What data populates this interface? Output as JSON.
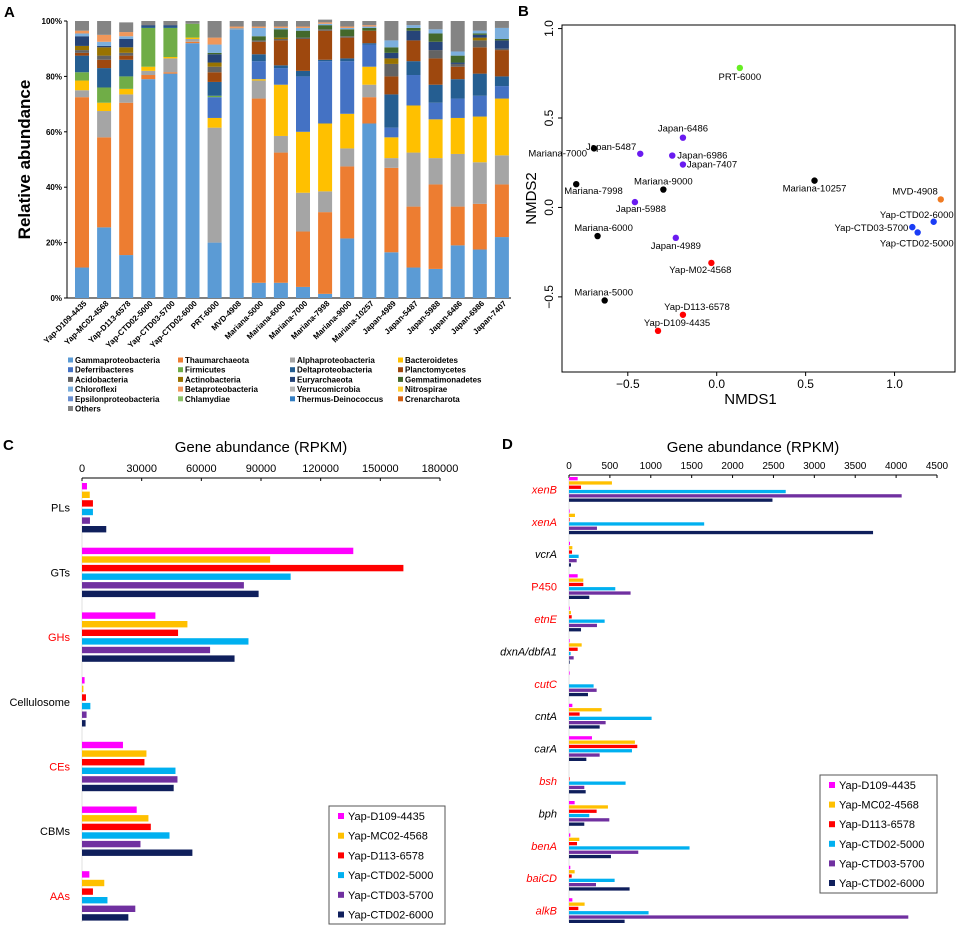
{
  "panel_labels": [
    "A",
    "B",
    "C",
    "D"
  ],
  "chart_data": [
    {
      "panel": "A",
      "type": "bar",
      "stacked": true,
      "ylabel": "Relative abundance",
      "ylim": [
        0,
        100
      ],
      "yticks": [
        "0%",
        "20%",
        "40%",
        "60%",
        "80%",
        "100%"
      ],
      "categories": [
        "Yap-D109-4435",
        "Yap-MC02-4568",
        "Yap-D113-6578",
        "Yap-CTD02-5000",
        "Yap-CTD03-5700",
        "Yap-CTD02-6000",
        "PRT-6000",
        "MVD-4908",
        "Mariana-5000",
        "Mariana-6000",
        "Mariana-7000",
        "Mariana-7998",
        "Mariana-9000",
        "Mariana-10257",
        "Japan-4989",
        "Japan-5487",
        "Japan-5988",
        "Japan-6486",
        "Japan-6986",
        "Japan-7407"
      ],
      "legend": [
        {
          "name": "Gammaproteobacteria",
          "color": "#5b9bd5"
        },
        {
          "name": "Thaumarchaeota",
          "color": "#ed7d31"
        },
        {
          "name": "Alphaproteobacteria",
          "color": "#a5a5a5"
        },
        {
          "name": "Bacteroidetes",
          "color": "#ffc000"
        },
        {
          "name": "Deferribacteres",
          "color": "#4472c4"
        },
        {
          "name": "Firmicutes",
          "color": "#70ad47"
        },
        {
          "name": "Deltaproteobacteria",
          "color": "#255e91"
        },
        {
          "name": "Planctomycetes",
          "color": "#9e480e"
        },
        {
          "name": "Acidobacteria",
          "color": "#636363"
        },
        {
          "name": "Actinobacteria",
          "color": "#997300"
        },
        {
          "name": "Euryarchaeota",
          "color": "#264478"
        },
        {
          "name": "Gemmatimonadetes",
          "color": "#43682b"
        },
        {
          "name": "Chloroflexi",
          "color": "#7cafdd"
        },
        {
          "name": "Betaproteobacteria",
          "color": "#f1975a"
        },
        {
          "name": "Verrucomicrobia",
          "color": "#b7b7b7"
        },
        {
          "name": "Nitrospirae",
          "color": "#ffcd33"
        },
        {
          "name": "Epsilonproteobacteria",
          "color": "#698ed0"
        },
        {
          "name": "Chlamydiae",
          "color": "#8cc168"
        },
        {
          "name": "Thermus-Deinococcus",
          "color": "#327dc2"
        },
        {
          "name": "Crenarcharota",
          "color": "#d26012"
        },
        {
          "name": "Others",
          "color": "#848484"
        }
      ],
      "series": [
        {
          "name": "Gammaproteobacteria",
          "values": [
            11,
            25.5,
            15.5,
            79,
            81,
            92,
            20,
            97,
            5.5,
            5.5,
            4,
            1.5,
            21.5,
            63,
            16.5,
            11,
            10.5,
            19,
            17.5,
            22
          ]
        },
        {
          "name": "Thaumarchaeota",
          "values": [
            61.5,
            32.5,
            55,
            1.5,
            0.5,
            0.5,
            0,
            0,
            66.5,
            47,
            20,
            29.5,
            26,
            9.5,
            30.5,
            22,
            30.5,
            14,
            16.5,
            19
          ]
        },
        {
          "name": "Alphaproteobacteria",
          "values": [
            2.5,
            9.5,
            3,
            1.5,
            5,
            1,
            41.5,
            0.5,
            6.5,
            6,
            14,
            7.5,
            6.5,
            4.5,
            3.5,
            19.5,
            9.5,
            19,
            15,
            10.5
          ]
        },
        {
          "name": "Bacteroidetes",
          "values": [
            3.5,
            3,
            2,
            1.5,
            0.5,
            0.5,
            3.5,
            0,
            0.5,
            18.5,
            22,
            24.5,
            12.5,
            6.5,
            7.5,
            17,
            14,
            13,
            16.5,
            20.5
          ]
        },
        {
          "name": "Deferribacteres",
          "values": [
            0,
            0,
            0,
            0,
            0,
            0,
            7.5,
            0,
            6.5,
            6,
            20,
            22.5,
            19,
            8,
            3.5,
            11,
            6,
            7,
            7.5,
            4.5
          ]
        },
        {
          "name": "Firmicutes",
          "values": [
            3,
            5.5,
            4.5,
            14,
            10.5,
            5,
            0.5,
            0,
            0,
            0,
            0,
            0,
            0,
            0,
            0,
            0,
            0,
            0,
            0,
            0
          ]
        },
        {
          "name": "Deltaproteobacteria",
          "values": [
            6,
            7,
            6,
            0.5,
            0.5,
            0,
            5,
            0,
            2.5,
            1,
            2,
            0.5,
            1,
            0.5,
            12,
            5,
            6.5,
            7,
            8,
            3.5
          ]
        },
        {
          "name": "Planctomycetes",
          "values": [
            1,
            3,
            1.5,
            0,
            0,
            0,
            3.5,
            0,
            4.5,
            9,
            11.5,
            10.5,
            7.5,
            4.5,
            6.5,
            7.5,
            9.5,
            4.5,
            9.5,
            9.5
          ]
        },
        {
          "name": "Acidobacteria",
          "values": [
            1,
            1.5,
            1,
            0,
            0,
            0,
            2,
            0,
            0.5,
            0.5,
            0.5,
            0.5,
            0.5,
            0,
            4.5,
            0,
            3,
            1,
            2.5,
            0.5
          ]
        },
        {
          "name": "Actinobacteria",
          "values": [
            1.5,
            3,
            2,
            0,
            0,
            0,
            1.5,
            0,
            0,
            0.5,
            0,
            0,
            0,
            0,
            2,
            0,
            0,
            0,
            1,
            0
          ]
        },
        {
          "name": "Euryarchaeota",
          "values": [
            3.5,
            0.5,
            3,
            0.5,
            0.5,
            0,
            3,
            0,
            0,
            0,
            0,
            0,
            0,
            0,
            2,
            3.5,
            3,
            0.5,
            1,
            3
          ]
        },
        {
          "name": "Gemmatimonadetes",
          "values": [
            0,
            0,
            0,
            0,
            0,
            0,
            0.5,
            0,
            1.5,
            3,
            2.5,
            1.5,
            2.5,
            1,
            2,
            1,
            3,
            2.5,
            0.5,
            0.5
          ]
        },
        {
          "name": "Chloroflexi",
          "values": [
            1,
            1.5,
            1,
            0,
            0,
            0,
            3,
            0,
            3,
            0.5,
            1,
            0.5,
            0.5,
            0.5,
            2.5,
            1,
            1.5,
            1.5,
            1,
            4
          ]
        },
        {
          "name": "Betaproteobacteria",
          "values": [
            1,
            2.5,
            1.5,
            0,
            0,
            0,
            2.5,
            0.5,
            0.5,
            0.5,
            0.5,
            0.5,
            0.5,
            0.5,
            0,
            0,
            0,
            0,
            0,
            0
          ]
        },
        {
          "name": "Others",
          "values": [
            3.5,
            5,
            3.5,
            1.5,
            1.5,
            1,
            6,
            2,
            2,
            2,
            2,
            1,
            2,
            1.5,
            7,
            1.5,
            3,
            11,
            3.5,
            2.5
          ]
        }
      ]
    },
    {
      "panel": "B",
      "type": "scatter",
      "xlabel": "NMDS1",
      "ylabel": "NMDS2",
      "xlim": [
        -0.87,
        1.34
      ],
      "ylim": [
        -0.92,
        1.02
      ],
      "xticks": [
        -0.5,
        0.0,
        0.5,
        1.0
      ],
      "yticks": [
        -0.5,
        0.0,
        0.5,
        1.0
      ],
      "points": [
        {
          "label": "PRT-6000",
          "x": 0.13,
          "y": 0.78,
          "color": "#66ee22"
        },
        {
          "label": "Japan-6486",
          "x": -0.19,
          "y": 0.39,
          "color": "#6a1bf0"
        },
        {
          "label": "Japan-5487",
          "x": -0.43,
          "y": 0.3,
          "color": "#6a1bf0"
        },
        {
          "label": "Mariana-7000",
          "x": -0.69,
          "y": 0.33,
          "color": "#000000"
        },
        {
          "label": "Japan-6986",
          "x": -0.25,
          "y": 0.29,
          "color": "#6a1bf0"
        },
        {
          "label": "Japan-7407",
          "x": -0.19,
          "y": 0.24,
          "color": "#6a1bf0"
        },
        {
          "label": "Mariana-7998",
          "x": -0.79,
          "y": 0.13,
          "color": "#000000"
        },
        {
          "label": "Mariana-9000",
          "x": -0.3,
          "y": 0.1,
          "color": "#000000"
        },
        {
          "label": "Mariana-10257",
          "x": 0.55,
          "y": 0.15,
          "color": "#000000"
        },
        {
          "label": "MVD-4908",
          "x": 1.26,
          "y": 0.045,
          "color": "#f07b22"
        },
        {
          "label": "Japan-5988",
          "x": -0.46,
          "y": 0.03,
          "color": "#6a1bf0"
        },
        {
          "label": "Yap-CTD02-6000",
          "x": 1.22,
          "y": -0.08,
          "color": "#1a3cf5"
        },
        {
          "label": "Yap-CTD03-5700",
          "x": 1.1,
          "y": -0.11,
          "color": "#1a3cf5"
        },
        {
          "label": "Yap-CTD02-5000",
          "x": 1.13,
          "y": -0.14,
          "color": "#1a3cf5"
        },
        {
          "label": "Mariana-6000",
          "x": -0.67,
          "y": -0.16,
          "color": "#000000"
        },
        {
          "label": "Japan-4989",
          "x": -0.23,
          "y": -0.17,
          "color": "#6a1bf0"
        },
        {
          "label": "Yap-M02-4568",
          "x": -0.03,
          "y": -0.31,
          "color": "#ff0000"
        },
        {
          "label": "Mariana-5000",
          "x": -0.63,
          "y": -0.52,
          "color": "#000000"
        },
        {
          "label": "Yap-D113-6578",
          "x": -0.19,
          "y": -0.6,
          "color": "#ff0000"
        },
        {
          "label": "Yap-D109-4435",
          "x": -0.33,
          "y": -0.69,
          "color": "#ff0000"
        }
      ]
    },
    {
      "panel": "C",
      "type": "bar",
      "orientation": "horizontal",
      "title": "Gene abundance (RPKM)",
      "xlim": [
        0,
        180000
      ],
      "xticks": [
        0,
        30000,
        60000,
        90000,
        120000,
        150000,
        180000
      ],
      "legend_position": "bottom-right",
      "categories": [
        {
          "label": "PLs",
          "color": "#000000"
        },
        {
          "label": "GTs",
          "color": "#000000"
        },
        {
          "label": "GHs",
          "color": "#ff0000"
        },
        {
          "label": "Cellulosome",
          "color": "#000000"
        },
        {
          "label": "CEs",
          "color": "#ff0000"
        },
        {
          "label": "CBMs",
          "color": "#000000"
        },
        {
          "label": "AAs",
          "color": "#ff0000"
        }
      ],
      "series": [
        {
          "name": "Yap-D109-4435",
          "color": "#ff00ff",
          "values": [
            2500,
            136400,
            36900,
            1300,
            20600,
            27500,
            3700
          ]
        },
        {
          "name": "Yap-MC02-4568",
          "color": "#ffc000",
          "values": [
            3900,
            94600,
            53000,
            700,
            32400,
            33400,
            11200
          ]
        },
        {
          "name": "Yap-D113-6578",
          "color": "#ff0000",
          "values": [
            5500,
            161600,
            48300,
            2000,
            31400,
            34600,
            5500
          ]
        },
        {
          "name": "Yap-CTD02-5000",
          "color": "#00b0f0",
          "values": [
            5500,
            104900,
            83700,
            4200,
            47000,
            44000,
            12800
          ]
        },
        {
          "name": "Yap-CTD03-5700",
          "color": "#7030a0",
          "values": [
            4000,
            81400,
            64400,
            2300,
            48000,
            29400,
            26800
          ]
        },
        {
          "name": "Yap-CTD02-6000",
          "color": "#0f1f5c",
          "values": [
            12200,
            88800,
            76700,
            1800,
            46100,
            55500,
            23300
          ]
        }
      ]
    },
    {
      "panel": "D",
      "type": "bar",
      "orientation": "horizontal",
      "title": "Gene abundance (RPKM)",
      "xlim": [
        0,
        4500
      ],
      "xticks": [
        0,
        500,
        1000,
        1500,
        2000,
        2500,
        3000,
        3500,
        4000,
        4500
      ],
      "legend_position": "bottom-right",
      "categories": [
        {
          "label": "xenB",
          "color": "#ff0000",
          "italic": true
        },
        {
          "label": "xenA",
          "color": "#ff0000",
          "italic": true
        },
        {
          "label": "vcrA",
          "color": "#000000",
          "italic": true
        },
        {
          "label": "P450",
          "color": "#ff0000",
          "italic": false
        },
        {
          "label": "etnE",
          "color": "#ff0000",
          "italic": true
        },
        {
          "label": "dxnA/dbfA1",
          "color": "#000000",
          "italic": true
        },
        {
          "label": "cutC",
          "color": "#ff0000",
          "italic": true
        },
        {
          "label": "cntA",
          "color": "#000000",
          "italic": true
        },
        {
          "label": "carA",
          "color": "#000000",
          "italic": true
        },
        {
          "label": "bsh",
          "color": "#ff0000",
          "italic": true
        },
        {
          "label": "bph",
          "color": "#000000",
          "italic": true
        },
        {
          "label": "benA",
          "color": "#ff0000",
          "italic": true
        },
        {
          "label": "baiCD",
          "color": "#ff0000",
          "italic": true
        },
        {
          "label": "alkB",
          "color": "#ff0000",
          "italic": true
        }
      ],
      "series": [
        {
          "name": "Yap-D109-4435",
          "color": "#ff00ff",
          "values": [
            106,
            8,
            12,
            106,
            8,
            8,
            8,
            41,
            281,
            0,
            69,
            16,
            16,
            41
          ]
        },
        {
          "name": "Yap-MC02-4568",
          "color": "#ffc000",
          "values": [
            525,
            73,
            41,
            175,
            24,
            155,
            0,
            399,
            806,
            0,
            476,
            126,
            69,
            191
          ]
        },
        {
          "name": "Yap-D113-6578",
          "color": "#ff0000",
          "values": [
            147,
            4,
            37,
            175,
            33,
            106,
            0,
            130,
            835,
            4,
            338,
            98,
            33,
            114
          ]
        },
        {
          "name": "Yap-CTD02-5000",
          "color": "#00b0f0",
          "values": [
            2650,
            1653,
            118,
            566,
            436,
            20,
            301,
            1010,
            770,
            692,
            248,
            1474,
            558,
            973
          ]
        },
        {
          "name": "Yap-CTD03-5700",
          "color": "#7030a0",
          "values": [
            4068,
            342,
            94,
            753,
            342,
            57,
            338,
            448,
            375,
            187,
            493,
            847,
            330,
            4149
          ]
        },
        {
          "name": "Yap-CTD02-6000",
          "color": "#0f1f5c",
          "values": [
            2488,
            3718,
            24,
            248,
            147,
            8,
            232,
            375,
            212,
            204,
            187,
            513,
            741,
            680
          ]
        }
      ]
    }
  ]
}
